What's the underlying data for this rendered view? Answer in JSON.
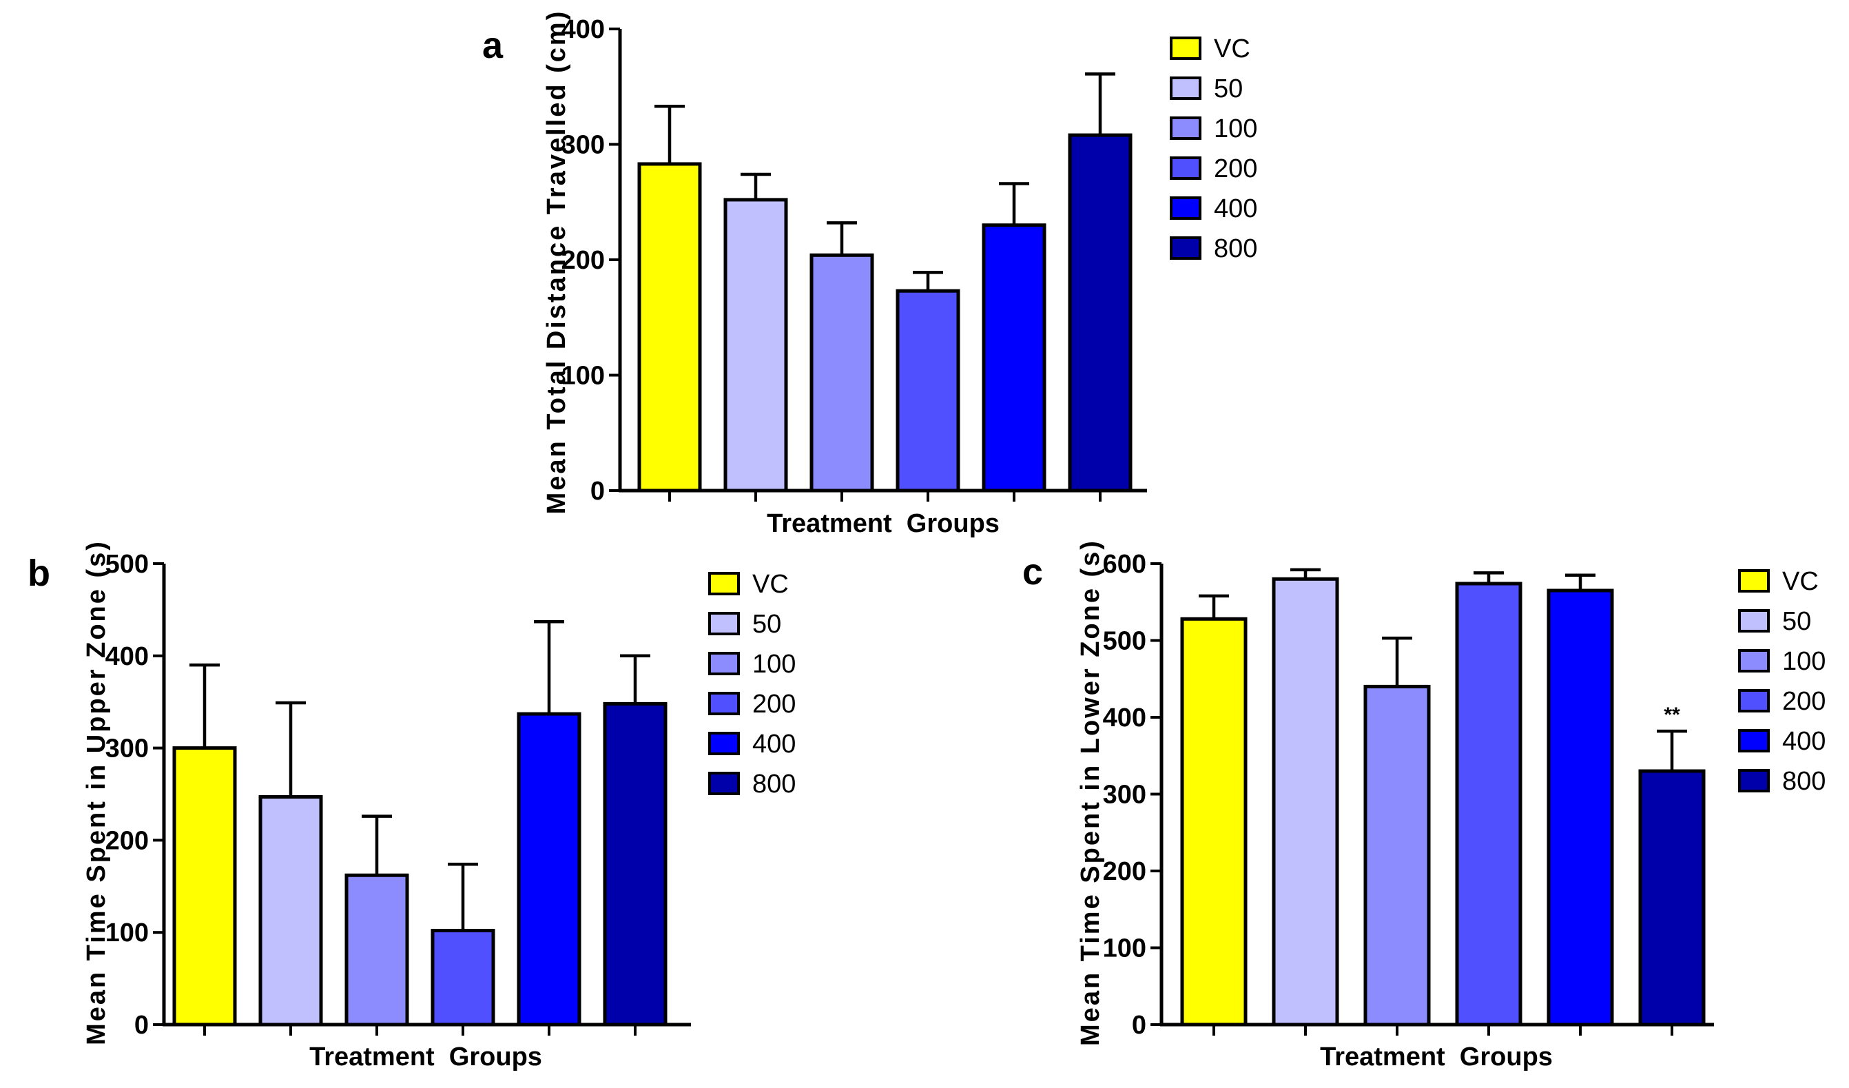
{
  "figure": {
    "legend_labels": [
      "VC",
      "50",
      "100",
      "200",
      "400",
      "800"
    ],
    "colors": [
      "#ffff00",
      "#c0c0ff",
      "#8c8cff",
      "#5050ff",
      "#0000ff",
      "#0000aa"
    ]
  },
  "chart_data": [
    {
      "panel": "a",
      "type": "bar",
      "categories": [
        "VC",
        "50",
        "100",
        "200",
        "400",
        "800"
      ],
      "values": [
        283,
        252,
        204,
        173,
        230,
        308
      ],
      "errors": [
        50,
        22,
        28,
        16,
        36,
        53
      ],
      "annotations": [
        "",
        "",
        "",
        "",
        "",
        ""
      ],
      "xlabel": "Treatment  Groups",
      "ylabel": "Mean Total Distance Travelled (cm)",
      "ylim": [
        0,
        400
      ],
      "yticks": [
        0,
        100,
        200,
        300,
        400
      ],
      "ytick_labels": [
        "0",
        "100",
        "200",
        "300",
        "400"
      ]
    },
    {
      "panel": "b",
      "type": "bar",
      "categories": [
        "VC",
        "50",
        "100",
        "200",
        "400",
        "800"
      ],
      "values": [
        300,
        247,
        162,
        102,
        337,
        348
      ],
      "errors": [
        90,
        102,
        64,
        72,
        100,
        52
      ],
      "annotations": [
        "",
        "",
        "",
        "",
        "",
        ""
      ],
      "xlabel": "Treatment  Groups",
      "ylabel": "Mean Time Spent in Upper Zone (s)",
      "ylim": [
        0,
        500
      ],
      "yticks": [
        0,
        100,
        200,
        300,
        400,
        500
      ],
      "ytick_labels": [
        "0",
        "100",
        "200",
        "300",
        "400",
        "500"
      ]
    },
    {
      "panel": "c",
      "type": "bar",
      "categories": [
        "VC",
        "50",
        "100",
        "200",
        "400",
        "800"
      ],
      "values": [
        528,
        580,
        440,
        574,
        565,
        330
      ],
      "errors": [
        30,
        12,
        63,
        14,
        20,
        52
      ],
      "annotations": [
        "",
        "",
        "",
        "",
        "",
        "**"
      ],
      "xlabel": "Treatment  Groups",
      "ylabel": "Mean Time Spent in Lower Zone (s)",
      "ylim": [
        0,
        600
      ],
      "yticks": [
        0,
        100,
        200,
        300,
        400,
        500,
        600
      ],
      "ytick_labels": [
        "0",
        "100",
        "200",
        "300",
        "400",
        "500",
        "600"
      ]
    }
  ]
}
